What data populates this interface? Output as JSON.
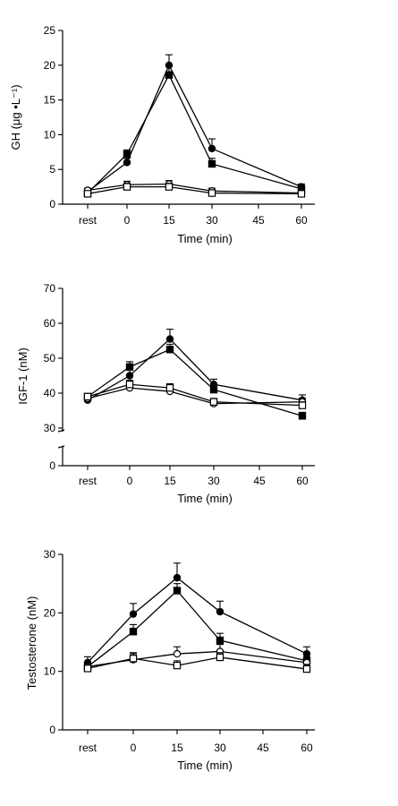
{
  "chart_data": [
    {
      "type": "line",
      "title": "",
      "xlabel": "Time (min)",
      "ylabel": "GH (μg •L⁻¹)",
      "x": [
        "rest",
        "0",
        "15",
        "30",
        "45",
        "60"
      ],
      "ylim": [
        0,
        25
      ],
      "yticks": [
        0,
        5,
        10,
        15,
        20,
        25
      ],
      "axis_break": false,
      "grid": false,
      "series": [
        {
          "marker": "filled-circle",
          "x": [
            "rest",
            "0",
            "15",
            "30",
            "60"
          ],
          "values": [
            1.8,
            6.0,
            20.0,
            8.0,
            2.5
          ],
          "err": [
            0.3,
            0.6,
            1.5,
            1.4,
            0.4
          ]
        },
        {
          "marker": "filled-square",
          "x": [
            "rest",
            "0",
            "15",
            "30",
            "60"
          ],
          "values": [
            1.6,
            7.2,
            18.6,
            5.8,
            2.2
          ],
          "err": [
            0.3,
            0.6,
            1.2,
            0.8,
            0.4
          ]
        },
        {
          "marker": "open-circle",
          "x": [
            "rest",
            "0",
            "15",
            "30",
            "60"
          ],
          "values": [
            2.0,
            2.8,
            2.9,
            1.9,
            1.6
          ],
          "err": [
            0.3,
            0.5,
            0.5,
            0.4,
            0.3
          ]
        },
        {
          "marker": "open-square",
          "x": [
            "rest",
            "0",
            "15",
            "30",
            "60"
          ],
          "values": [
            1.5,
            2.5,
            2.5,
            1.6,
            1.5
          ],
          "err": [
            0.3,
            0.5,
            0.5,
            0.3,
            0.3
          ]
        }
      ]
    },
    {
      "type": "line",
      "title": "",
      "xlabel": "Time (min)",
      "ylabel": "IGF-1 (nM)",
      "x": [
        "rest",
        "0",
        "15",
        "30",
        "45",
        "60"
      ],
      "ylim": [
        0,
        70
      ],
      "yticks": [
        0,
        30,
        40,
        50,
        60,
        70
      ],
      "axis_break": true,
      "break_range": [
        0,
        27
      ],
      "grid": false,
      "series": [
        {
          "marker": "filled-circle",
          "x": [
            "rest",
            "0",
            "15",
            "30",
            "60"
          ],
          "values": [
            38.0,
            45.0,
            55.5,
            42.5,
            38.0
          ],
          "err": [
            0.8,
            2.0,
            2.8,
            1.5,
            1.5
          ]
        },
        {
          "marker": "filled-square",
          "x": [
            "rest",
            "0",
            "15",
            "30",
            "60"
          ],
          "values": [
            39.0,
            47.5,
            52.5,
            41.0,
            33.5
          ],
          "err": [
            0.8,
            1.5,
            1.5,
            1.5,
            1.0
          ]
        },
        {
          "marker": "open-circle",
          "x": [
            "rest",
            "0",
            "15",
            "30",
            "60"
          ],
          "values": [
            38.5,
            41.5,
            40.5,
            37.0,
            37.5
          ],
          "err": [
            0.8,
            1.2,
            1.2,
            1.0,
            1.0
          ]
        },
        {
          "marker": "open-square",
          "x": [
            "rest",
            "0",
            "15",
            "30",
            "60"
          ],
          "values": [
            39.0,
            42.5,
            41.5,
            37.5,
            36.5
          ],
          "err": [
            0.8,
            1.2,
            1.2,
            1.0,
            1.0
          ]
        }
      ]
    },
    {
      "type": "line",
      "title": "",
      "xlabel": "Time (min)",
      "ylabel": "Testosterone (nM)",
      "x": [
        "rest",
        "0",
        "15",
        "30",
        "45",
        "60"
      ],
      "ylim": [
        0,
        30
      ],
      "yticks": [
        0,
        10,
        20,
        30
      ],
      "axis_break": false,
      "grid": false,
      "series": [
        {
          "marker": "filled-circle",
          "x": [
            "rest",
            "0",
            "15",
            "30",
            "60"
          ],
          "values": [
            11.5,
            19.8,
            26.0,
            20.2,
            13.0
          ],
          "err": [
            1.0,
            1.8,
            2.5,
            1.8,
            1.2
          ]
        },
        {
          "marker": "filled-square",
          "x": [
            "rest",
            "0",
            "15",
            "30",
            "60"
          ],
          "values": [
            10.8,
            16.8,
            23.8,
            15.3,
            11.8
          ],
          "err": [
            0.8,
            1.2,
            1.2,
            1.2,
            1.0
          ]
        },
        {
          "marker": "open-circle",
          "x": [
            "rest",
            "0",
            "15",
            "30",
            "60"
          ],
          "values": [
            10.8,
            12.0,
            13.0,
            13.4,
            11.5
          ],
          "err": [
            0.8,
            1.2,
            1.2,
            1.2,
            1.0
          ]
        },
        {
          "marker": "open-square",
          "x": [
            "rest",
            "0",
            "15",
            "30",
            "60"
          ],
          "values": [
            10.5,
            12.2,
            11.0,
            12.4,
            10.4
          ],
          "err": [
            0.8,
            0.8,
            0.8,
            0.8,
            0.8
          ]
        }
      ]
    }
  ]
}
